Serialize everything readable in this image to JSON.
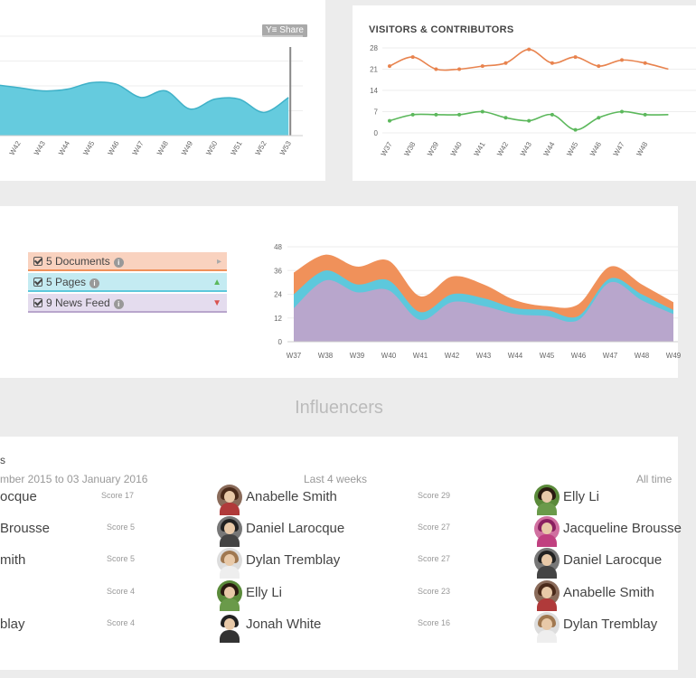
{
  "colors": {
    "area_fill": "#5dc8dc",
    "area_line": "#3fb1c8",
    "visitors_line": "#e8834e",
    "contributors_line": "#5cb85c",
    "documents": "#f0915a",
    "pages": "#5dc8dc",
    "newsfeed": "#b8a6cc"
  },
  "top_left_card": {
    "share_label": "Share"
  },
  "visitors_card": {
    "title": "VISITORS & CONTRIBUTORS"
  },
  "legend": [
    {
      "label": "5 Documents",
      "info": "i",
      "arrow": "▸",
      "arrow_color": "#aaa",
      "bg": "#f9d2bf",
      "border": "#f0915a"
    },
    {
      "label": "5 Pages",
      "info": "i",
      "arrow": "▲",
      "arrow_color": "#5cb85c",
      "bg": "#c4ebf2",
      "border": "#5dc8dc"
    },
    {
      "label": "9 News Feed",
      "info": "i",
      "arrow": "▼",
      "arrow_color": "#d9534f",
      "bg": "#e4dcee",
      "border": "#b8a6cc"
    }
  ],
  "influencers": {
    "section_title": "Influencers",
    "col1_title_partial": "s",
    "col1_date_range": "mber 2015 to 03 January 2016",
    "col2_header": "Last 4 weeks",
    "col3_header": "All time",
    "col1": [
      {
        "name": "ocque",
        "score": "Score 17"
      },
      {
        "name": "Brousse",
        "score": "Score 5"
      },
      {
        "name": "mith",
        "score": "Score 5"
      },
      {
        "name": "",
        "score": "Score 4"
      },
      {
        "name": "blay",
        "score": "Score 4"
      }
    ],
    "col2": [
      {
        "name": "Anabelle Smith",
        "score": "Score 29",
        "avatar": "anabelle-avatar"
      },
      {
        "name": "Daniel Larocque",
        "score": "Score 27",
        "avatar": "daniel-avatar"
      },
      {
        "name": "Dylan Tremblay",
        "score": "Score 27",
        "avatar": "dylan-avatar"
      },
      {
        "name": "Elly Li",
        "score": "Score 23",
        "avatar": "elly-avatar"
      },
      {
        "name": "Jonah White",
        "score": "Score 16",
        "avatar": "jonah-avatar"
      }
    ],
    "col3": [
      {
        "name": "Elly Li",
        "avatar": "elly-avatar"
      },
      {
        "name": "Jacqueline Brousse",
        "avatar": "jacqueline-avatar"
      },
      {
        "name": "Daniel Larocque",
        "avatar": "daniel-avatar"
      },
      {
        "name": "Anabelle Smith",
        "avatar": "anabelle-avatar"
      },
      {
        "name": "Dylan Tremblay",
        "avatar": "dylan-avatar"
      }
    ]
  },
  "chart_data": [
    {
      "type": "area",
      "categories": [
        "W42",
        "W43",
        "W44",
        "W45",
        "W46",
        "W47",
        "W48",
        "W49",
        "W50",
        "W51",
        "W52",
        "W53"
      ],
      "leading_value": 15.5,
      "values": [
        14.5,
        13.5,
        14,
        16,
        15.5,
        11.5,
        13.5,
        8,
        11,
        11,
        7,
        11.5
      ],
      "ylim": [
        0,
        30
      ],
      "grid": true
    },
    {
      "type": "line",
      "title": "VISITORS & CONTRIBUTORS",
      "categories": [
        "W37",
        "W38",
        "W39",
        "W40",
        "W41",
        "W42",
        "W43",
        "W44",
        "W45",
        "W46",
        "W47",
        "W48"
      ],
      "yticks": [
        0,
        7,
        14,
        21,
        28
      ],
      "ylim": [
        0,
        28
      ],
      "trailing_values": [
        21,
        6
      ],
      "series": [
        {
          "values": [
            22,
            25,
            21,
            21,
            22,
            23,
            27.5,
            23,
            25,
            22,
            24,
            23
          ]
        },
        {
          "values": [
            4,
            6,
            6,
            6,
            7,
            5,
            4,
            6,
            1,
            5,
            7,
            6
          ]
        }
      ],
      "grid": true
    },
    {
      "type": "area",
      "stacked": true,
      "categories": [
        "W37",
        "W38",
        "W39",
        "W40",
        "W41",
        "W42",
        "W43",
        "W44",
        "W45",
        "W46",
        "W47",
        "W48",
        "W49"
      ],
      "yticks": [
        0,
        12,
        24,
        36,
        48
      ],
      "ylim": [
        0,
        48
      ],
      "series": [
        {
          "values": [
            17,
            31,
            25,
            26,
            11,
            20,
            18,
            14,
            13,
            11,
            30,
            21,
            14
          ]
        },
        {
          "values": [
            7,
            5,
            4,
            5,
            4,
            4,
            4,
            3,
            3,
            2,
            2,
            3,
            2
          ]
        },
        {
          "values": [
            11,
            8,
            9,
            10,
            8,
            9,
            7,
            4,
            2,
            6,
            6,
            5,
            4
          ]
        }
      ],
      "grid": true
    }
  ]
}
